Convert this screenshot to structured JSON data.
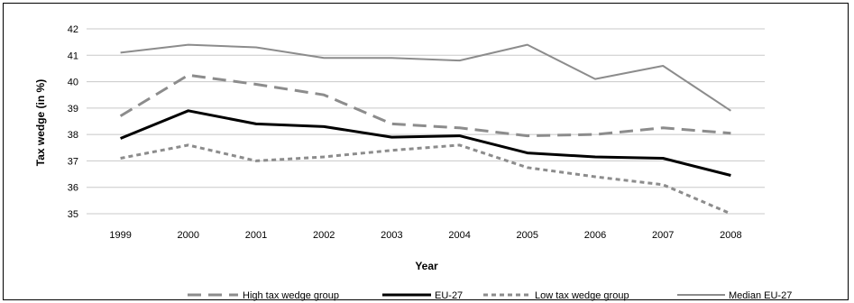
{
  "chart_data": {
    "type": "line",
    "xlabel": "Year",
    "ylabel": "Tax wedge (in %)",
    "ylim": [
      35,
      42
    ],
    "yticks": [
      35,
      36,
      37,
      38,
      39,
      40,
      41,
      42
    ],
    "categories": [
      "1999",
      "2000",
      "2001",
      "2002",
      "2003",
      "2004",
      "2005",
      "2006",
      "2007",
      "2008"
    ],
    "grid": "horizontal",
    "legend_position": "bottom",
    "series": [
      {
        "name": "High tax wedge group",
        "style": "long-dash",
        "color": "#8c8c8c",
        "values": [
          38.7,
          40.25,
          39.9,
          39.5,
          38.4,
          38.25,
          37.95,
          38.0,
          38.25,
          38.05
        ]
      },
      {
        "name": "EU-27",
        "style": "solid-bold",
        "color": "#000000",
        "values": [
          37.85,
          38.9,
          38.4,
          38.3,
          37.9,
          37.95,
          37.3,
          37.15,
          37.1,
          36.45
        ]
      },
      {
        "name": "Low tax wedge group",
        "style": "short-dash",
        "color": "#8c8c8c",
        "values": [
          37.1,
          37.6,
          37.0,
          37.15,
          37.4,
          37.6,
          36.75,
          36.4,
          36.1,
          35.0
        ]
      },
      {
        "name": "Median EU-27",
        "style": "solid-thin",
        "color": "#8c8c8c",
        "values": [
          41.1,
          41.4,
          41.3,
          40.9,
          40.9,
          40.8,
          41.4,
          40.1,
          40.6,
          38.9
        ]
      }
    ]
  }
}
